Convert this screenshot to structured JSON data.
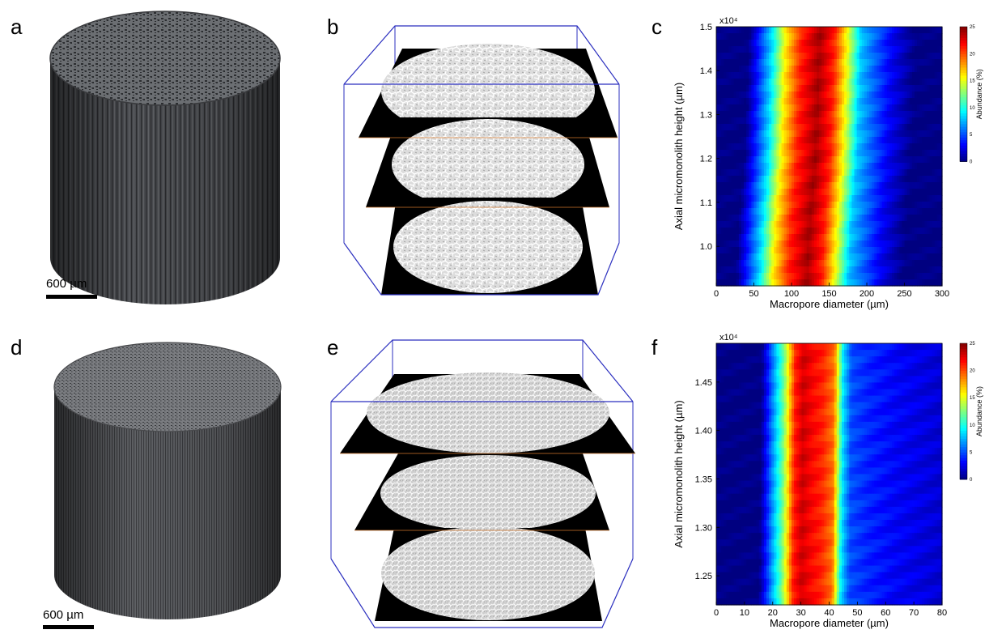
{
  "panels": {
    "a": "a",
    "b": "b",
    "c": "c",
    "d": "d",
    "e": "e",
    "f": "f"
  },
  "scalebars": {
    "top": "600 µm",
    "bottom": "600 µm"
  },
  "chart_data": [
    {
      "panel": "c",
      "type": "heatmap",
      "xlabel": "Macropore diameter (µm)",
      "ylabel": "Axial micromonolith height (µm)",
      "y_multiplier": "x10⁴",
      "xlim": [
        0,
        300
      ],
      "ylim": [
        0.91,
        1.5
      ],
      "xticks": [
        0,
        50,
        100,
        150,
        200,
        250,
        300
      ],
      "yticks": [
        1.0,
        1.1,
        1.2,
        1.3,
        1.4,
        1.5
      ],
      "xtick_labels": [
        "0",
        "50",
        "100",
        "150",
        "200",
        "250",
        "300"
      ],
      "ytick_labels": [
        "1.0",
        "1.1",
        "1.2",
        "1.3",
        "1.4",
        "1.5"
      ],
      "colorbar": {
        "label": "Abundance (%)",
        "range": [
          0,
          25
        ],
        "ticks": [
          "0",
          "5",
          "10",
          "15",
          "20",
          "25"
        ]
      },
      "peak_x": [
        {
          "height": 0.91,
          "diameter": 120
        },
        {
          "height": 1.05,
          "diameter": 124
        },
        {
          "height": 1.2,
          "diameter": 132
        },
        {
          "height": 1.35,
          "diameter": 135
        },
        {
          "height": 1.5,
          "diameter": 138
        }
      ],
      "band_profile": [
        {
          "dx": -95,
          "value": 0
        },
        {
          "dx": -80,
          "value": 4
        },
        {
          "dx": -62,
          "value": 9
        },
        {
          "dx": -45,
          "value": 16
        },
        {
          "dx": -25,
          "value": 21
        },
        {
          "dx": 0,
          "value": 24
        },
        {
          "dx": 20,
          "value": 21
        },
        {
          "dx": 38,
          "value": 15
        },
        {
          "dx": 55,
          "value": 8
        },
        {
          "dx": 70,
          "value": 6
        },
        {
          "dx": 95,
          "value": 3
        },
        {
          "dx": 130,
          "value": 0
        }
      ]
    },
    {
      "panel": "f",
      "type": "heatmap",
      "xlabel": "Macropore diameter (µm)",
      "ylabel": "Axial micromonolith height (µm)",
      "y_multiplier": "x10⁴",
      "xlim": [
        0,
        80
      ],
      "ylim": [
        1.22,
        1.49
      ],
      "xticks": [
        0,
        10,
        20,
        30,
        40,
        50,
        60,
        70,
        80
      ],
      "yticks": [
        1.25,
        1.3,
        1.35,
        1.4,
        1.45
      ],
      "xtick_labels": [
        "0",
        "10",
        "20",
        "30",
        "40",
        "50",
        "60",
        "70",
        "80"
      ],
      "ytick_labels": [
        "1.25",
        "1.30",
        "1.35",
        "1.40",
        "1.45"
      ],
      "colorbar": {
        "label": "Abundance (%)",
        "range": [
          0,
          25
        ],
        "ticks": [
          "0",
          "5",
          "10",
          "15",
          "20",
          "25"
        ]
      },
      "peak_x": [
        {
          "height": 1.22,
          "diameter": 33
        },
        {
          "height": 1.49,
          "diameter": 34
        }
      ],
      "band_profile": [
        {
          "dx": -18,
          "value": 0
        },
        {
          "dx": -14,
          "value": 6
        },
        {
          "dx": -10,
          "value": 12
        },
        {
          "dx": -6,
          "value": 21
        },
        {
          "dx": -3,
          "value": 23
        },
        {
          "dx": 0,
          "value": 22
        },
        {
          "dx": 4,
          "value": 21
        },
        {
          "dx": 8,
          "value": 19
        },
        {
          "dx": 11,
          "value": 9
        },
        {
          "dx": 14,
          "value": 5
        },
        {
          "dx": 20,
          "value": 4
        },
        {
          "dx": 30,
          "value": 3
        },
        {
          "dx": 46,
          "value": 2
        }
      ]
    }
  ]
}
